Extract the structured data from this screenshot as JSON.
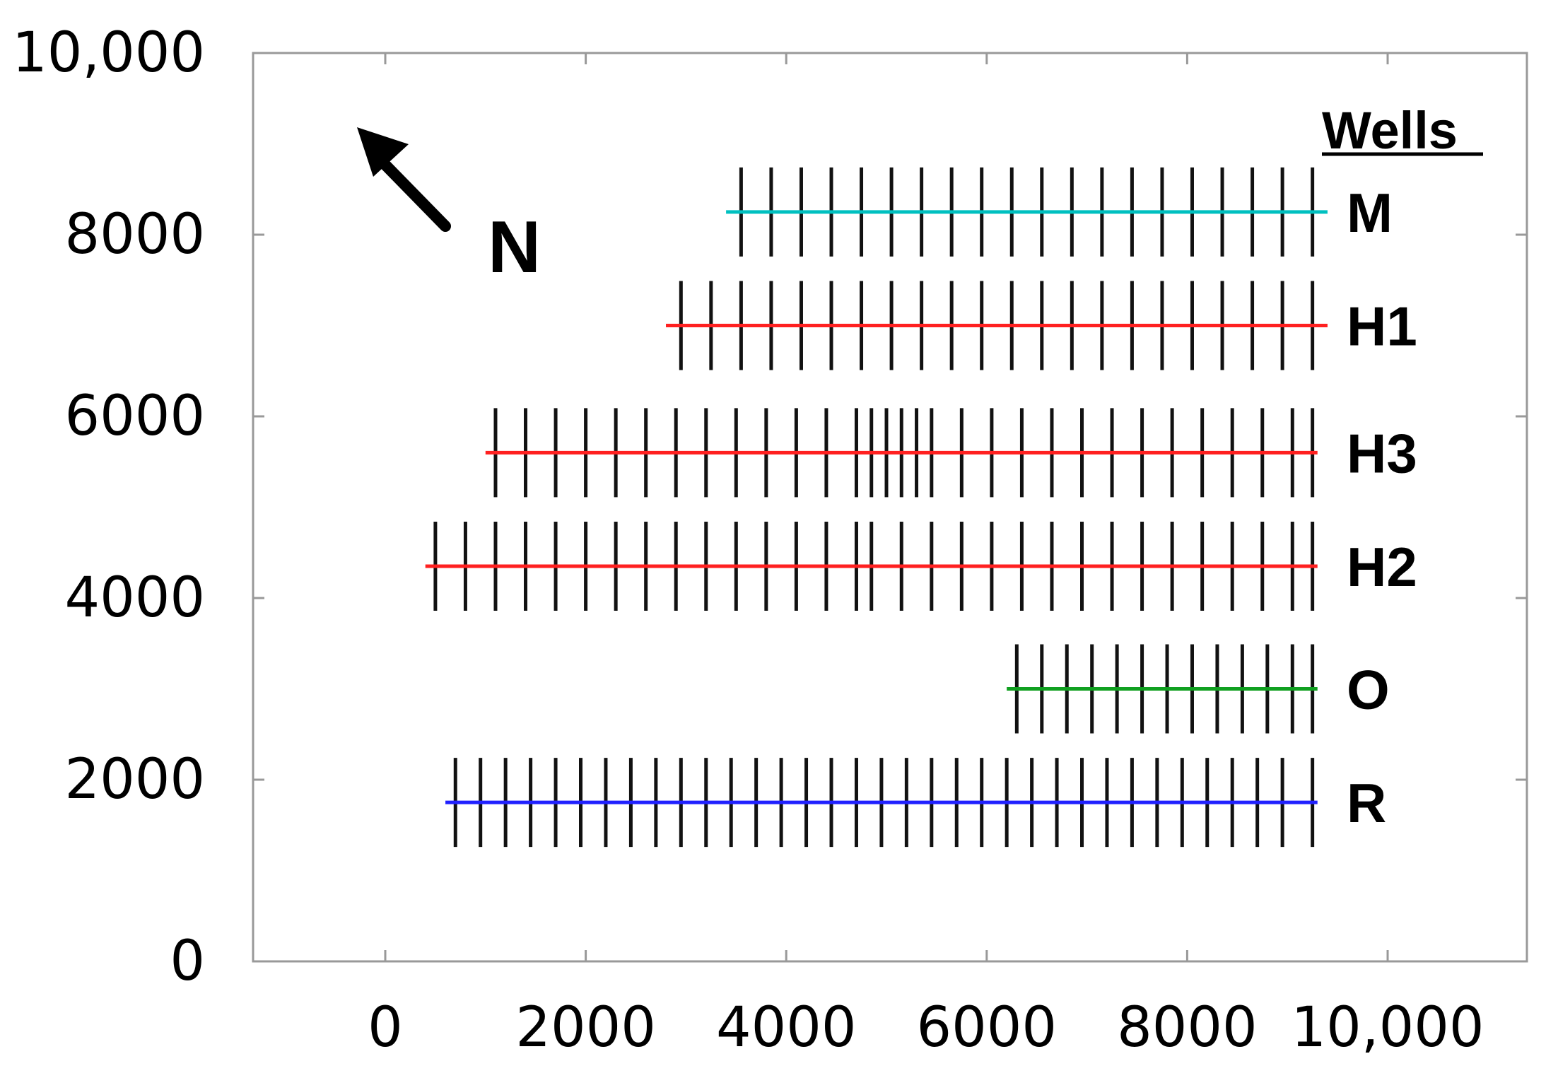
{
  "chart_data": {
    "type": "scatter",
    "title": "",
    "xlabel": "",
    "ylabel": "",
    "xlim": [
      -1400,
      11300
    ],
    "ylim": [
      0,
      10200
    ],
    "x_ticks": [
      0,
      2000,
      4000,
      6000,
      8000,
      10000
    ],
    "x_tick_labels": [
      "0",
      "2000",
      "4000",
      "6000",
      "8000",
      "10,000"
    ],
    "y_ticks": [
      0,
      2000,
      4000,
      6000,
      8000,
      10000
    ],
    "y_tick_labels": [
      "0",
      "2000",
      "4000",
      "6000",
      "8000",
      "10,000"
    ],
    "legend": {
      "title": "Wells",
      "placement": "right"
    },
    "north_label": "N",
    "series": [
      {
        "name": "M",
        "color": "#00c0c0",
        "y": 8250,
        "x_start": 3400,
        "x_end": 9400,
        "well_x": [
          3550,
          3850,
          4150,
          4450,
          4750,
          5050,
          5350,
          5650,
          5950,
          6250,
          6550,
          6850,
          7150,
          7450,
          7750,
          8050,
          8350,
          8650,
          8950,
          9250
        ]
      },
      {
        "name": "H1",
        "color": "#ff2020",
        "y": 7000,
        "x_start": 2800,
        "x_end": 9400,
        "well_x": [
          2950,
          3250,
          3550,
          3850,
          4150,
          4450,
          4750,
          5050,
          5350,
          5650,
          5950,
          6250,
          6550,
          6850,
          7150,
          7450,
          7750,
          8050,
          8350,
          8650,
          8950,
          9250
        ]
      },
      {
        "name": "H3",
        "color": "#ff2020",
        "y": 5600,
        "x_start": 1000,
        "x_end": 9300,
        "well_x": [
          1100,
          1400,
          1700,
          2000,
          2300,
          2600,
          2900,
          3200,
          3500,
          3800,
          4100,
          4400,
          4700,
          5000,
          5300,
          4850,
          5150,
          5450,
          5750,
          6050,
          6350,
          6650,
          6950,
          7250,
          7550,
          7850,
          8150,
          8450,
          8750,
          9050,
          9250
        ]
      },
      {
        "name": "H2",
        "color": "#ff2020",
        "y": 4350,
        "x_start": 400,
        "x_end": 9300,
        "well_x": [
          500,
          800,
          1100,
          1400,
          1700,
          2000,
          2300,
          2600,
          2900,
          3200,
          3500,
          3800,
          4100,
          4400,
          4700,
          4850,
          5150,
          5450,
          5750,
          6050,
          6350,
          6650,
          6950,
          7250,
          7550,
          7850,
          8150,
          8450,
          8750,
          9050,
          9250
        ]
      },
      {
        "name": "O",
        "color": "#10a020",
        "y": 3000,
        "x_start": 6200,
        "x_end": 9300,
        "well_x": [
          6300,
          6550,
          6800,
          7050,
          7300,
          7550,
          7800,
          8050,
          8300,
          8550,
          8800,
          9050,
          9250
        ]
      },
      {
        "name": "R",
        "color": "#2020ff",
        "y": 1750,
        "x_start": 600,
        "x_end": 9300,
        "well_x": [
          700,
          950,
          1200,
          1450,
          1700,
          1950,
          2200,
          2450,
          2700,
          2950,
          3200,
          3450,
          3700,
          3950,
          4200,
          4450,
          4700,
          4950,
          5200,
          5450,
          5700,
          5950,
          6200,
          6450,
          6700,
          6950,
          7200,
          7450,
          7700,
          7950,
          8200,
          8450,
          8700,
          8950,
          9250
        ]
      }
    ]
  }
}
